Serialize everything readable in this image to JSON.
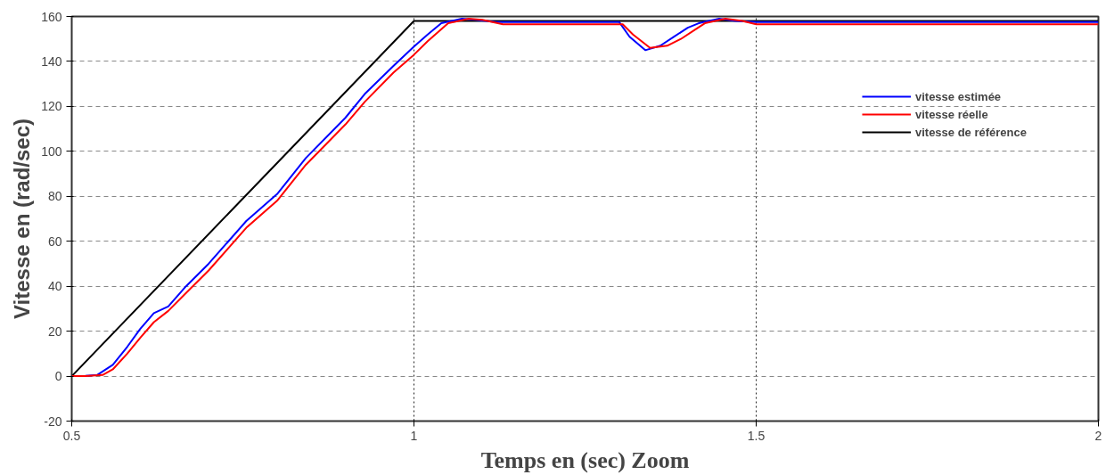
{
  "chart_data": {
    "type": "line",
    "xlabel": "Temps en (sec) Zoom",
    "ylabel": "Vitesse en (rad/sec)",
    "xlim": [
      0.5,
      2
    ],
    "ylim": [
      -20,
      160
    ],
    "xticks": [
      0.5,
      1,
      1.5,
      2
    ],
    "yticks": [
      -20,
      0,
      20,
      40,
      60,
      80,
      100,
      120,
      140,
      160
    ],
    "grid": true,
    "legend": "top right",
    "line_style": "solid",
    "series": [
      {
        "name": "vitesse estimée",
        "color": "#0000ff",
        "x": [
          0.5,
          0.52,
          0.537,
          0.56,
          0.581,
          0.6,
          0.62,
          0.641,
          0.667,
          0.7,
          0.755,
          0.8,
          0.842,
          0.9,
          0.928,
          0.97,
          1.0,
          1.02,
          1.04,
          1.07,
          1.09,
          1.12,
          1.2,
          1.3,
          1.315,
          1.338,
          1.36,
          1.38,
          1.4,
          1.416,
          1.446,
          1.47,
          1.5,
          1.6,
          1.8,
          2.0
        ],
        "values": [
          0,
          0.1,
          0.5,
          5,
          13,
          21,
          28,
          31,
          40,
          50,
          69,
          81,
          97,
          115,
          125.5,
          138,
          146.6,
          152,
          157,
          159,
          158.5,
          157.5,
          157.5,
          157.5,
          151,
          145,
          147,
          151,
          155,
          157,
          159,
          158,
          157.5,
          157.5,
          157.5,
          157.5
        ]
      },
      {
        "name": "vitesse réelle",
        "color": "#ff0000",
        "x": [
          0.5,
          0.52,
          0.545,
          0.56,
          0.581,
          0.6,
          0.62,
          0.641,
          0.667,
          0.7,
          0.755,
          0.8,
          0.842,
          0.9,
          0.928,
          0.97,
          1.0,
          1.02,
          1.05,
          1.08,
          1.1,
          1.13,
          1.2,
          1.305,
          1.32,
          1.345,
          1.37,
          1.39,
          1.41,
          1.425,
          1.455,
          1.48,
          1.5,
          1.6,
          1.8,
          2.0
        ],
        "values": [
          0,
          0,
          0.5,
          3,
          10,
          17,
          24,
          29,
          37,
          47,
          66,
          78,
          94,
          112,
          122,
          135,
          143,
          149,
          157,
          159,
          158.5,
          156.5,
          156.5,
          156.5,
          152,
          146,
          147,
          150,
          154,
          157,
          159,
          158,
          156.5,
          156.5,
          156.5,
          156.5
        ]
      },
      {
        "name": "vitesse de référence",
        "color": "#000000",
        "x": [
          0.5,
          1.0,
          2.0
        ],
        "values": [
          0,
          158,
          158
        ]
      }
    ]
  }
}
